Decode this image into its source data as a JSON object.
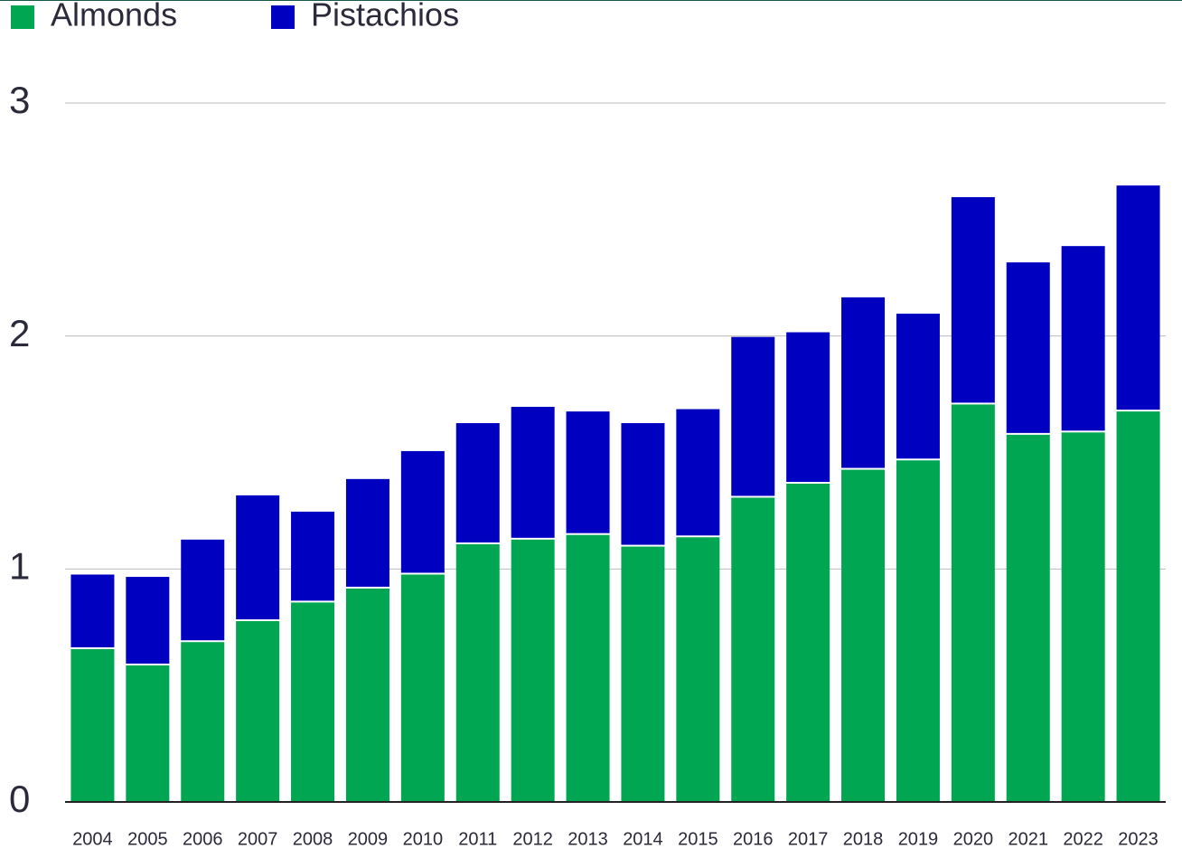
{
  "chart_data": {
    "type": "stacked_bar",
    "categories": [
      "2004",
      "2005",
      "2006",
      "2007",
      "2008",
      "2009",
      "2010",
      "2011",
      "2012",
      "2013",
      "2014",
      "2015",
      "2016",
      "2017",
      "2018",
      "2019",
      "2020",
      "2021",
      "2022",
      "2023"
    ],
    "series": [
      {
        "name": "Almonds",
        "color": "#00a651",
        "values": [
          0.66,
          0.59,
          0.69,
          0.78,
          0.86,
          0.92,
          0.98,
          1.11,
          1.13,
          1.15,
          1.1,
          1.14,
          1.31,
          1.37,
          1.43,
          1.47,
          1.71,
          1.58,
          1.59,
          1.68
        ]
      },
      {
        "name": "Pistachios",
        "color": "#0000c0",
        "values": [
          0.32,
          0.38,
          0.44,
          0.54,
          0.39,
          0.47,
          0.53,
          0.52,
          0.57,
          0.53,
          0.53,
          0.55,
          0.69,
          0.65,
          0.74,
          0.63,
          0.89,
          0.74,
          0.8,
          0.97
        ]
      }
    ],
    "ylim": [
      0,
      3
    ],
    "yticks": [
      0,
      1,
      2,
      3
    ],
    "grid": true
  }
}
